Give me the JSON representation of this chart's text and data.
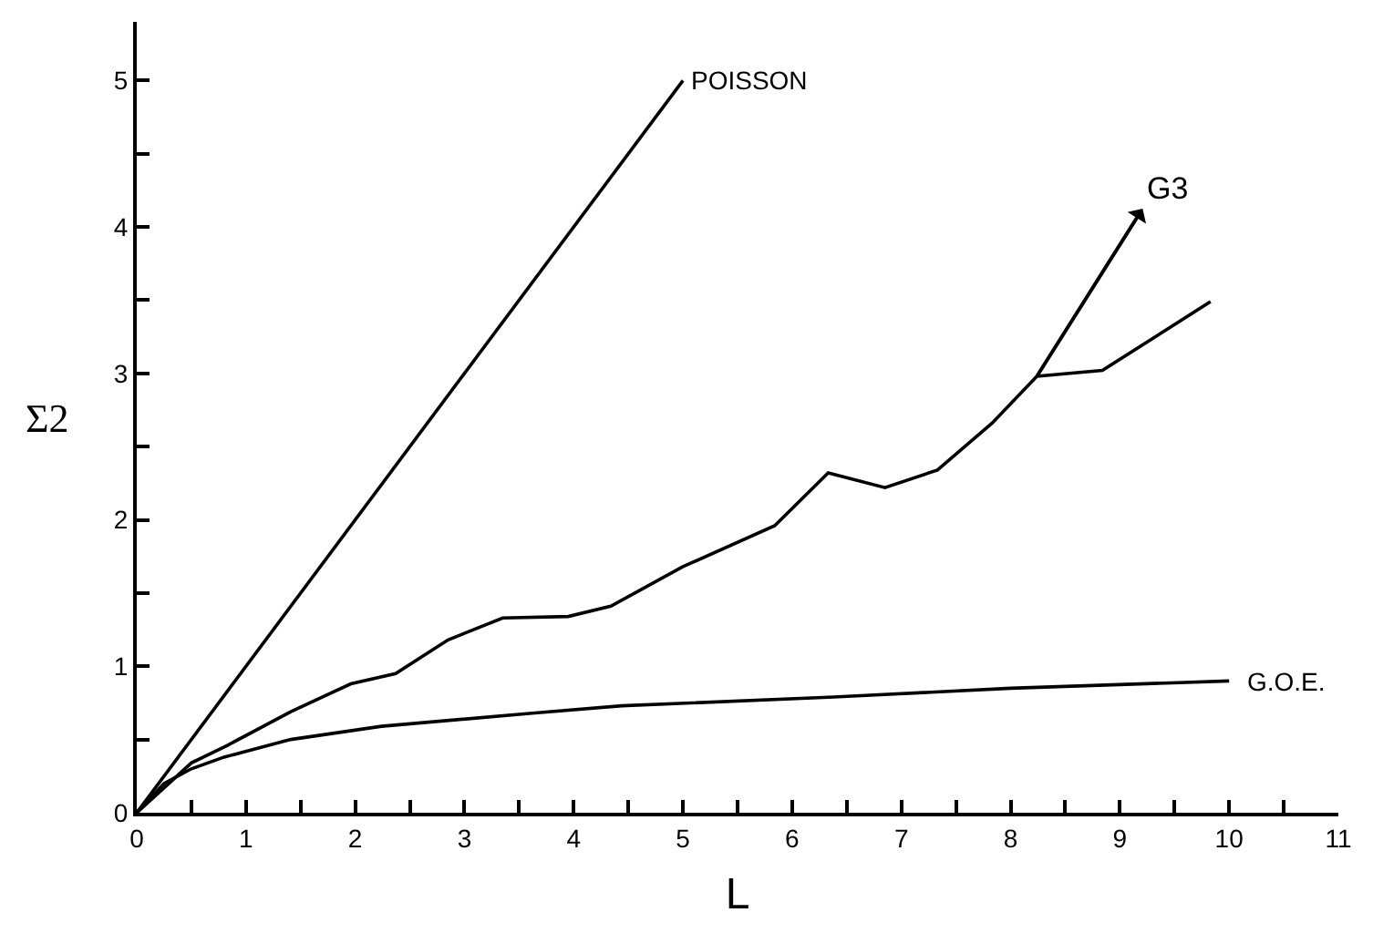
{
  "chart_data": {
    "type": "line",
    "xlabel": "L",
    "ylabel": "Σ2",
    "xlim": [
      0,
      11
    ],
    "ylim": [
      0,
      5.4
    ],
    "xticks": [
      0,
      {
        "value": 0.5,
        "label": null
      },
      1,
      {
        "value": 1.5,
        "label": null
      },
      2,
      {
        "value": 2.5,
        "label": null
      },
      3,
      {
        "value": 3.5,
        "label": null
      },
      4,
      {
        "value": 4.5,
        "label": null
      },
      5,
      {
        "value": 5.5,
        "label": null
      },
      6,
      {
        "value": 6.5,
        "label": null
      },
      7,
      {
        "value": 7.5,
        "label": null
      },
      8,
      {
        "value": 8.5,
        "label": null
      },
      9,
      {
        "value": 9.5,
        "label": null
      },
      10,
      {
        "value": 10.5,
        "label": null
      },
      11
    ],
    "yticks": [
      0,
      {
        "value": 0.5,
        "label": null
      },
      1,
      {
        "value": 1.5,
        "label": null
      },
      2,
      {
        "value": 2.5,
        "label": null
      },
      3,
      {
        "value": 3.5,
        "label": null
      },
      4,
      {
        "value": 4.5,
        "label": null
      },
      5
    ],
    "marker": "none",
    "line_style": "solid",
    "series": [
      {
        "color": "#000000",
        "x": [
          0,
          5
        ],
        "values": [
          0,
          5
        ]
      },
      {
        "color": "#000000",
        "x": [
          0,
          0.5,
          0.83,
          1.41,
          1.96,
          2.37,
          2.85,
          3.35,
          3.95,
          4.34,
          5.0,
          5.84,
          6.33,
          6.85,
          7.33,
          7.83,
          8.24,
          8.84,
          9.83
        ],
        "values": [
          0,
          0.34,
          0.46,
          0.69,
          0.88,
          0.95,
          1.18,
          1.33,
          1.34,
          1.41,
          1.68,
          1.96,
          2.32,
          2.22,
          2.34,
          2.66,
          2.98,
          3.02,
          3.49
        ]
      },
      {
        "color": "#000000",
        "x": [
          0,
          0.25,
          0.5,
          0.8,
          1.41,
          2.24,
          3.62,
          4.44,
          6.38,
          8.0,
          10.0
        ],
        "values": [
          0,
          0.2,
          0.3,
          0.38,
          0.5,
          0.59,
          0.68,
          0.73,
          0.79,
          0.85,
          0.9
        ]
      }
    ],
    "annotations": [
      {
        "text": "POISSON",
        "x": 5,
        "y": 5
      },
      {
        "text": "G3",
        "x": 8.24,
        "y": 2.98
      },
      {
        "text": "G.O.E.",
        "x": 10,
        "y": 0.9
      }
    ]
  }
}
